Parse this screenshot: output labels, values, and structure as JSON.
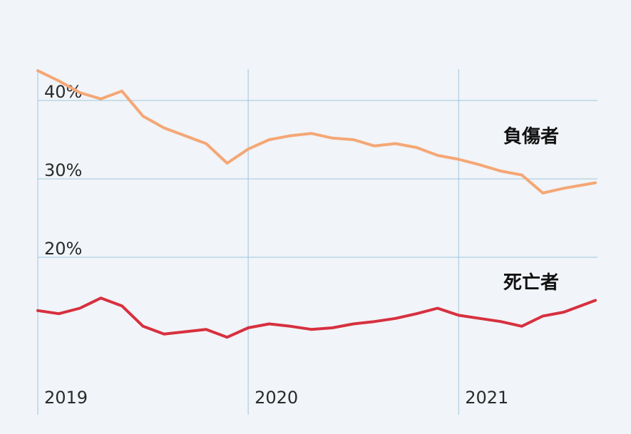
{
  "chart_data": {
    "type": "line",
    "title": "",
    "xlabel": "",
    "ylabel": "",
    "ylim": [
      6,
      44
    ],
    "y_ticks": [
      {
        "value": 40,
        "label": "40%"
      },
      {
        "value": 30,
        "label": "30%"
      },
      {
        "value": 20,
        "label": "20%"
      }
    ],
    "x_ticks": [
      "2019",
      "2020",
      "2021"
    ],
    "grid": true,
    "series": [
      {
        "name": "負傷者",
        "color": "#f4a775",
        "x": [
          2019.0,
          2019.1,
          2019.2,
          2019.3,
          2019.4,
          2019.5,
          2019.6,
          2019.7,
          2019.8,
          2019.9,
          2020.0,
          2020.1,
          2020.2,
          2020.3,
          2020.4,
          2020.5,
          2020.6,
          2020.7,
          2020.8,
          2020.9,
          2021.0,
          2021.1,
          2021.2,
          2021.3,
          2021.4,
          2021.5,
          2021.65
        ],
        "values": [
          43.8,
          42.5,
          41.0,
          40.2,
          41.2,
          38.0,
          36.5,
          35.5,
          34.5,
          32.0,
          33.8,
          35.0,
          35.5,
          35.8,
          35.2,
          35.0,
          34.2,
          34.5,
          34.0,
          33.0,
          32.5,
          31.8,
          31.0,
          30.5,
          28.2,
          28.8,
          29.5
        ]
      },
      {
        "name": "死亡者",
        "color": "#d7303f",
        "x": [
          2019.0,
          2019.1,
          2019.2,
          2019.3,
          2019.4,
          2019.5,
          2019.6,
          2019.7,
          2019.8,
          2019.9,
          2020.0,
          2020.1,
          2020.2,
          2020.3,
          2020.4,
          2020.5,
          2020.6,
          2020.7,
          2020.8,
          2020.9,
          2021.0,
          2021.1,
          2021.2,
          2021.3,
          2021.4,
          2021.5,
          2021.65
        ],
        "values": [
          13.2,
          12.8,
          13.5,
          14.8,
          13.8,
          11.2,
          10.2,
          10.5,
          10.8,
          9.8,
          11.0,
          11.5,
          11.2,
          10.8,
          11.0,
          11.5,
          11.8,
          12.2,
          12.8,
          13.5,
          12.6,
          12.2,
          11.8,
          11.2,
          12.5,
          13.0,
          14.5
        ]
      }
    ]
  }
}
